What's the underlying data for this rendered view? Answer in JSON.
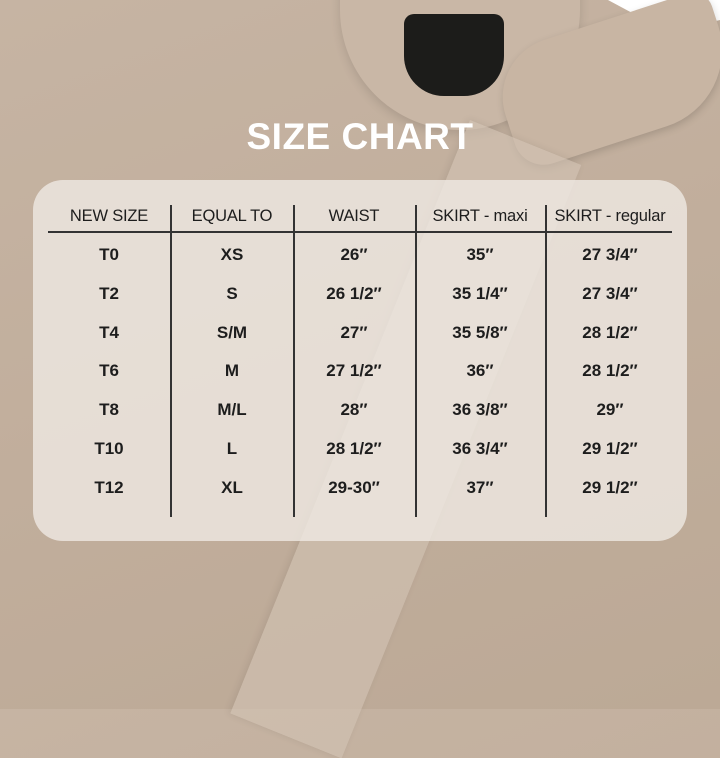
{
  "title": "SIZE CHART",
  "headers": [
    "NEW SIZE",
    "EQUAL TO",
    "WAIST",
    "SKIRT - maxi",
    "SKIRT - regular"
  ],
  "rows": [
    [
      "T0",
      "XS",
      "26″",
      "35″",
      "27 3/4″"
    ],
    [
      "T2",
      "S",
      "26 1/2″",
      "35 1/4″",
      "27 3/4″"
    ],
    [
      "T4",
      "S/M",
      "27″",
      "35 5/8″",
      "28 1/2″"
    ],
    [
      "T6",
      "M",
      "27 1/2″",
      "36″",
      "28 1/2″"
    ],
    [
      "T8",
      "M/L",
      "28″",
      "36 3/8″",
      "29″"
    ],
    [
      "T10",
      "L",
      "28 1/2″",
      "36 3/4″",
      "29 1/2″"
    ],
    [
      "T12",
      "XL",
      "29-30″",
      "37″",
      "29 1/2″"
    ]
  ],
  "colors": {
    "background": "#c1ae9c",
    "title": "#ffffff",
    "text": "#1d1d1d"
  }
}
